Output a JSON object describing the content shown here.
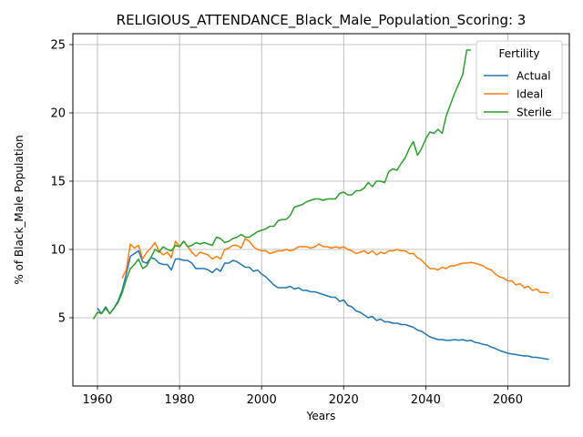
{
  "chart_data": {
    "type": "line",
    "title": "RELIGIOUS_ATTENDANCE_Black_Male_Population_Scoring: 3",
    "xlabel": "Years",
    "ylabel": "% of Black_Male Population",
    "xlim": [
      1954,
      2075
    ],
    "ylim": [
      0,
      25.8
    ],
    "xticks": [
      1960,
      1980,
      2000,
      2020,
      2040,
      2060
    ],
    "yticks": [
      5,
      10,
      15,
      20,
      25
    ],
    "grid": true,
    "legend": {
      "title": "Fertility",
      "placement": "top-right"
    },
    "series": [
      {
        "name": "Actual",
        "color": "#1f77b4",
        "x": [
          1960,
          1961,
          1962,
          1963,
          1964,
          1965,
          1966,
          1967,
          1968,
          1969,
          1970,
          1971,
          1972,
          1973,
          1974,
          1975,
          1976,
          1977,
          1978,
          1979,
          1980,
          1981,
          1982,
          1983,
          1984,
          1985,
          1986,
          1987,
          1988,
          1989,
          1990,
          1991,
          1992,
          1993,
          1994,
          1995,
          1996,
          1997,
          1998,
          1999,
          2000,
          2001,
          2002,
          2003,
          2004,
          2005,
          2006,
          2007,
          2008,
          2009,
          2010,
          2011,
          2012,
          2013,
          2014,
          2015,
          2016,
          2017,
          2018,
          2019,
          2020,
          2021,
          2022,
          2023,
          2024,
          2025,
          2026,
          2027,
          2028,
          2029,
          2030,
          2031,
          2032,
          2033,
          2034,
          2035,
          2036,
          2037,
          2038,
          2039,
          2040,
          2041,
          2042,
          2043,
          2044,
          2045,
          2046,
          2047,
          2048,
          2049,
          2050,
          2051,
          2052,
          2053,
          2054,
          2055,
          2056,
          2057,
          2058,
          2059,
          2060,
          2061,
          2062,
          2063,
          2064,
          2065,
          2066,
          2067,
          2068,
          2069,
          2070
        ],
        "values": [
          5.7,
          5.3,
          5.8,
          5.3,
          5.7,
          6.2,
          7.0,
          8.2,
          9.5,
          9.7,
          9.9,
          9.1,
          9.0,
          9.4,
          9.3,
          9.0,
          8.9,
          8.9,
          8.5,
          9.3,
          9.3,
          9.2,
          9.2,
          9.0,
          8.6,
          8.6,
          8.6,
          8.5,
          8.3,
          8.6,
          8.4,
          9.0,
          9.0,
          9.2,
          9.1,
          8.9,
          8.7,
          8.7,
          8.4,
          8.5,
          8.2,
          8.0,
          7.7,
          7.4,
          7.2,
          7.2,
          7.2,
          7.3,
          7.1,
          7.2,
          7.0,
          7.0,
          6.9,
          6.9,
          6.8,
          6.7,
          6.6,
          6.5,
          6.5,
          6.2,
          6.3,
          5.9,
          5.8,
          5.5,
          5.4,
          5.2,
          5.0,
          5.1,
          4.8,
          4.9,
          4.7,
          4.7,
          4.6,
          4.6,
          4.5,
          4.5,
          4.4,
          4.3,
          4.1,
          4.0,
          3.8,
          3.6,
          3.5,
          3.4,
          3.4,
          3.35,
          3.35,
          3.4,
          3.35,
          3.4,
          3.3,
          3.35,
          3.2,
          3.15,
          3.05,
          3.0,
          2.85,
          2.75,
          2.6,
          2.5,
          2.4,
          2.35,
          2.3,
          2.25,
          2.2,
          2.2,
          2.1,
          2.1,
          2.05,
          2.0,
          1.95
        ]
      },
      {
        "name": "Ideal",
        "color": "#ff7f0e",
        "x": [
          1966,
          1967,
          1968,
          1969,
          1970,
          1971,
          1972,
          1973,
          1974,
          1975,
          1976,
          1977,
          1978,
          1979,
          1980,
          1981,
          1982,
          1983,
          1984,
          1985,
          1986,
          1987,
          1988,
          1989,
          1990,
          1991,
          1992,
          1993,
          1994,
          1995,
          1996,
          1997,
          1998,
          1999,
          2000,
          2001,
          2002,
          2003,
          2004,
          2005,
          2006,
          2007,
          2008,
          2009,
          2010,
          2011,
          2012,
          2013,
          2014,
          2015,
          2016,
          2017,
          2018,
          2019,
          2020,
          2021,
          2022,
          2023,
          2024,
          2025,
          2026,
          2027,
          2028,
          2029,
          2030,
          2031,
          2032,
          2033,
          2034,
          2035,
          2036,
          2037,
          2038,
          2039,
          2040,
          2041,
          2042,
          2043,
          2044,
          2045,
          2046,
          2047,
          2048,
          2049,
          2050,
          2051,
          2052,
          2053,
          2054,
          2055,
          2056,
          2057,
          2058,
          2059,
          2060,
          2061,
          2062,
          2063,
          2064,
          2065,
          2066,
          2067,
          2068,
          2069,
          2070
        ],
        "values": [
          7.9,
          8.5,
          10.4,
          10.1,
          10.3,
          9.3,
          9.8,
          10.1,
          10.5,
          9.9,
          9.6,
          9.8,
          9.4,
          10.6,
          10.2,
          10.6,
          10.2,
          9.8,
          9.5,
          9.8,
          9.7,
          9.6,
          9.3,
          9.5,
          9.3,
          10.0,
          10.1,
          10.3,
          10.3,
          10.1,
          10.8,
          10.6,
          10.2,
          10.0,
          9.9,
          9.9,
          9.7,
          9.8,
          9.9,
          9.9,
          10.0,
          9.9,
          10.0,
          10.2,
          10.2,
          10.2,
          10.1,
          10.2,
          10.4,
          10.2,
          10.2,
          10.1,
          10.2,
          10.1,
          10.2,
          10.0,
          9.9,
          9.7,
          9.8,
          9.9,
          9.7,
          9.9,
          9.6,
          9.8,
          9.7,
          9.9,
          9.9,
          10.0,
          9.9,
          9.9,
          9.7,
          9.7,
          9.4,
          9.2,
          8.9,
          8.6,
          8.6,
          8.5,
          8.7,
          8.6,
          8.8,
          8.8,
          8.9,
          9.0,
          9.0,
          9.05,
          9.0,
          8.9,
          8.8,
          8.6,
          8.5,
          8.2,
          8.0,
          7.9,
          7.7,
          7.7,
          7.4,
          7.5,
          7.2,
          7.3,
          7.0,
          7.1,
          6.85,
          6.85,
          6.8
        ]
      },
      {
        "name": "Sterile",
        "color": "#2ca02c",
        "x": [
          1959,
          1960,
          1961,
          1962,
          1963,
          1964,
          1965,
          1966,
          1967,
          1968,
          1969,
          1970,
          1971,
          1972,
          1973,
          1974,
          1975,
          1976,
          1977,
          1978,
          1979,
          1980,
          1981,
          1982,
          1983,
          1984,
          1985,
          1986,
          1987,
          1988,
          1989,
          1990,
          1991,
          1992,
          1993,
          1994,
          1995,
          1996,
          1997,
          1998,
          1999,
          2000,
          2001,
          2002,
          2003,
          2004,
          2005,
          2006,
          2007,
          2008,
          2009,
          2010,
          2011,
          2012,
          2013,
          2014,
          2015,
          2016,
          2017,
          2018,
          2019,
          2020,
          2021,
          2022,
          2023,
          2024,
          2025,
          2026,
          2027,
          2028,
          2029,
          2030,
          2031,
          2032,
          2033,
          2034,
          2035,
          2036,
          2037,
          2038,
          2039,
          2040,
          2041,
          2042,
          2043,
          2044,
          2045,
          2046,
          2047,
          2048,
          2049,
          2050,
          2051
        ],
        "values": [
          4.9,
          5.4,
          5.3,
          5.7,
          5.3,
          5.7,
          6.1,
          6.8,
          7.8,
          8.6,
          8.9,
          9.3,
          8.6,
          8.8,
          9.4,
          10.0,
          9.8,
          10.2,
          10.0,
          9.9,
          10.3,
          10.2,
          10.6,
          10.2,
          10.3,
          10.5,
          10.4,
          10.5,
          10.4,
          10.3,
          10.9,
          10.8,
          10.5,
          10.6,
          10.8,
          10.9,
          11.1,
          10.9,
          10.9,
          11.1,
          11.3,
          11.4,
          11.5,
          11.7,
          11.7,
          12.1,
          12.2,
          12.2,
          12.5,
          13.1,
          13.2,
          13.3,
          13.5,
          13.6,
          13.7,
          13.7,
          13.6,
          13.7,
          13.7,
          13.7,
          14.1,
          14.2,
          14.0,
          14.0,
          14.3,
          14.3,
          14.5,
          14.9,
          14.6,
          15.0,
          15.0,
          14.9,
          15.7,
          15.9,
          15.8,
          16.3,
          16.7,
          17.4,
          17.9,
          16.9,
          17.4,
          18.1,
          18.6,
          18.5,
          18.8,
          18.5,
          19.8,
          20.6,
          21.4,
          22.1,
          22.8,
          24.6,
          24.6
        ]
      }
    ]
  }
}
